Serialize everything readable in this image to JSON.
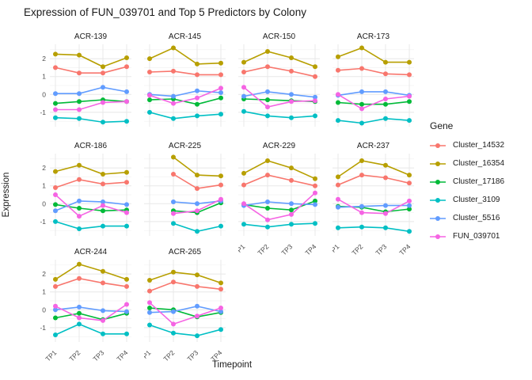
{
  "title": "Expression of FUN_039701 and Top 5 Predictors by Colony",
  "axes": {
    "x_label": "Timepoint",
    "y_label": "Expression",
    "x_tick_labels": [
      "TP1",
      "TP2",
      "TP3",
      "TP4"
    ],
    "y_tick_labels": [
      "2",
      "1",
      "0",
      "-1"
    ]
  },
  "legend": {
    "title": "Gene",
    "position": "right"
  },
  "chart_data": {
    "type": "line",
    "facet_by": "Colony",
    "x": [
      "TP1",
      "TP2",
      "TP3",
      "TP4"
    ],
    "xlabel": "Timepoint",
    "ylabel": "Expression",
    "y_ticks": [
      2,
      1,
      0,
      -1
    ],
    "ylim": [
      -1.8,
      2.8
    ],
    "grid": "on",
    "legend_title": "Gene",
    "legend_position": "right",
    "series": [
      {
        "name": "Cluster_14532",
        "color": "#F8766D"
      },
      {
        "name": "Cluster_16354",
        "color": "#B79F00"
      },
      {
        "name": "Cluster_17186",
        "color": "#00BA38"
      },
      {
        "name": "Cluster_3109",
        "color": "#00BFC4"
      },
      {
        "name": "Cluster_5516",
        "color": "#619CFF"
      },
      {
        "name": "FUN_039701",
        "color": "#F564E3"
      }
    ],
    "facets": [
      {
        "name": "ACR-139",
        "values": {
          "Cluster_14532": [
            1.5,
            1.2,
            1.2,
            1.55
          ],
          "Cluster_16354": [
            2.25,
            2.2,
            1.55,
            2.05
          ],
          "Cluster_17186": [
            -0.5,
            -0.4,
            -0.3,
            -0.4
          ],
          "Cluster_3109": [
            -1.3,
            -1.35,
            -1.55,
            -1.5
          ],
          "Cluster_5516": [
            0.05,
            0.05,
            0.4,
            0.15
          ],
          "FUN_039701": [
            -0.85,
            -0.85,
            -0.45,
            -0.4
          ]
        }
      },
      {
        "name": "ACR-145",
        "values": {
          "Cluster_14532": [
            1.25,
            1.3,
            1.1,
            1.1
          ],
          "Cluster_16354": [
            2.0,
            2.6,
            1.7,
            1.75
          ],
          "Cluster_17186": [
            -0.3,
            -0.25,
            -0.55,
            -0.2
          ],
          "Cluster_3109": [
            -1.0,
            -1.35,
            -1.2,
            -1.1
          ],
          "Cluster_5516": [
            0.0,
            -0.1,
            0.2,
            0.1
          ],
          "FUN_039701": [
            -0.05,
            -0.5,
            -0.2,
            0.35
          ]
        }
      },
      {
        "name": "ACR-150",
        "values": {
          "Cluster_14532": [
            1.25,
            1.55,
            1.3,
            1.0
          ],
          "Cluster_16354": [
            1.8,
            2.4,
            2.05,
            1.55
          ],
          "Cluster_17186": [
            -0.25,
            -0.3,
            -0.35,
            -0.4
          ],
          "Cluster_3109": [
            -0.95,
            -1.2,
            -1.3,
            -1.2
          ],
          "Cluster_5516": [
            -0.1,
            0.15,
            0.0,
            -0.15
          ],
          "FUN_039701": [
            0.4,
            -0.7,
            -0.4,
            -0.35
          ]
        }
      },
      {
        "name": "ACR-173",
        "values": {
          "Cluster_14532": [
            1.35,
            1.45,
            1.15,
            1.1
          ],
          "Cluster_16354": [
            2.1,
            2.6,
            1.8,
            1.8
          ],
          "Cluster_17186": [
            -0.45,
            -0.55,
            -0.55,
            -0.4
          ],
          "Cluster_3109": [
            -1.45,
            -1.6,
            -1.35,
            -1.45
          ],
          "Cluster_5516": [
            -0.05,
            0.15,
            0.15,
            -0.05
          ],
          "FUN_039701": [
            0.0,
            -0.8,
            -0.25,
            -0.1
          ]
        }
      },
      {
        "name": "ACR-186",
        "values": {
          "Cluster_14532": [
            0.9,
            1.35,
            1.1,
            1.2
          ],
          "Cluster_16354": [
            1.8,
            2.15,
            1.65,
            1.75
          ],
          "Cluster_17186": [
            -0.05,
            -0.25,
            -0.4,
            -0.35
          ],
          "Cluster_3109": [
            -1.0,
            -1.4,
            -1.25,
            -1.25
          ],
          "Cluster_5516": [
            -0.4,
            0.15,
            0.1,
            -0.05
          ],
          "FUN_039701": [
            0.5,
            -0.7,
            -0.1,
            -0.5
          ]
        }
      },
      {
        "name": "ACR-225",
        "values": {
          "Cluster_14532": [
            null,
            1.65,
            0.85,
            1.05
          ],
          "Cluster_16354": [
            null,
            2.6,
            1.6,
            1.55
          ],
          "Cluster_17186": [
            null,
            -0.4,
            -0.5,
            0.05
          ],
          "Cluster_3109": [
            null,
            -1.1,
            -1.55,
            -1.25
          ],
          "Cluster_5516": [
            null,
            0.1,
            0.0,
            0.15
          ],
          "FUN_039701": [
            null,
            -0.55,
            -0.4,
            0.25
          ]
        }
      },
      {
        "name": "ACR-229",
        "values": {
          "Cluster_14532": [
            1.05,
            1.6,
            1.3,
            1.0
          ],
          "Cluster_16354": [
            1.7,
            2.4,
            2.0,
            1.4
          ],
          "Cluster_17186": [
            -0.05,
            -0.25,
            -0.35,
            0.15
          ],
          "Cluster_3109": [
            -1.15,
            -1.3,
            -1.15,
            -1.1
          ],
          "Cluster_5516": [
            -0.1,
            0.1,
            0.0,
            -0.05
          ],
          "FUN_039701": [
            0.0,
            -0.9,
            -0.6,
            0.6
          ]
        }
      },
      {
        "name": "ACR-237",
        "values": {
          "Cluster_14532": [
            1.05,
            1.6,
            1.45,
            1.15
          ],
          "Cluster_16354": [
            1.5,
            2.4,
            2.15,
            1.6
          ],
          "Cluster_17186": [
            -0.15,
            -0.2,
            -0.45,
            -0.3
          ],
          "Cluster_3109": [
            -1.35,
            -1.3,
            -1.35,
            -1.55
          ],
          "Cluster_5516": [
            -0.2,
            -0.15,
            -0.1,
            -0.1
          ],
          "FUN_039701": [
            0.25,
            -0.5,
            -0.55,
            0.15
          ]
        }
      },
      {
        "name": "ACR-244",
        "values": {
          "Cluster_14532": [
            1.3,
            1.75,
            1.5,
            1.3
          ],
          "Cluster_16354": [
            1.7,
            2.55,
            2.15,
            1.7
          ],
          "Cluster_17186": [
            -0.45,
            -0.2,
            -0.55,
            -0.2
          ],
          "Cluster_3109": [
            -1.4,
            -0.8,
            -1.35,
            -1.35
          ],
          "Cluster_5516": [
            0.0,
            0.15,
            -0.05,
            -0.1
          ],
          "FUN_039701": [
            0.2,
            -0.45,
            -0.6,
            0.3
          ]
        }
      },
      {
        "name": "ACR-265",
        "values": {
          "Cluster_14532": [
            1.05,
            1.55,
            1.3,
            1.15
          ],
          "Cluster_16354": [
            1.65,
            2.1,
            1.95,
            1.5
          ],
          "Cluster_17186": [
            0.1,
            0.0,
            -0.4,
            -0.15
          ],
          "Cluster_3109": [
            -0.85,
            -1.3,
            -1.45,
            -1.1
          ],
          "Cluster_5516": [
            -0.15,
            -0.1,
            0.2,
            -0.1
          ],
          "FUN_039701": [
            0.4,
            -0.8,
            -0.35,
            0.1
          ]
        }
      }
    ]
  }
}
